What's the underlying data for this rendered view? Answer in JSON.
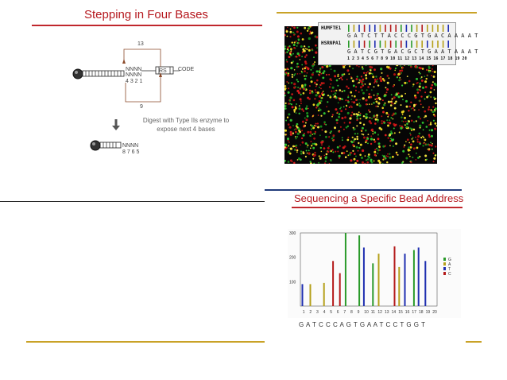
{
  "slides": {
    "left_top": {
      "title": "Stepping in Four Bases",
      "label_13": "13",
      "label_9": "9",
      "nnnn_top": "NNNN",
      "nnnn_bottom": "NNNN",
      "digits_432": "4 3 2 1",
      "rs_label": "RS",
      "code_label": "CODE",
      "digest_text_line1": "Digest with Type IIs enzyme to",
      "digest_text_line2": "expose next 4 bases",
      "nnnn_after": "NNNN",
      "digits_8765": "8 7 6 5"
    },
    "right_top": {
      "seq1_name": "HUMFTE1",
      "seq1_letters": "G A T C T T A C C C G T G A C A A A A T",
      "seq2_name": "HSRNPA1",
      "seq2_letters": "G A T C G T G A C G C T G A A T A A A T",
      "position_numbers": "1 2 3 4 5 6 7 8 9 10 11 12 13 14 15 16 17 18 19 20"
    },
    "right_bottom": {
      "title": "Sequencing a Specific Bead Address",
      "bottom_sequence": "G A T C C C A G T G A A T C C T G G T"
    }
  },
  "colors": {
    "title_red": "#b5171d",
    "gold": "#c9a227",
    "navy": "#1f3a7a",
    "G": "#2a9a2a",
    "A": "#b5a01a",
    "T": "#1f2fb0",
    "C": "#b41a1a"
  },
  "chart_data": {
    "type": "bar",
    "categories": [
      "1",
      "2",
      "3",
      "4",
      "5",
      "6",
      "7",
      "8",
      "9",
      "10",
      "11",
      "12",
      "13",
      "14",
      "15",
      "16",
      "17",
      "18",
      "19",
      "20"
    ],
    "y_ticks": [
      "100",
      "200",
      "300"
    ],
    "ylim": [
      0,
      300
    ],
    "legend": [
      "G",
      "A",
      "T",
      "C"
    ],
    "series": [
      {
        "name": "G",
        "values": [
          0,
          0,
          0,
          0,
          0,
          0,
          300,
          0,
          290,
          0,
          175,
          0,
          0,
          0,
          0,
          0,
          230,
          0,
          0,
          0
        ]
      },
      {
        "name": "A",
        "values": [
          0,
          90,
          0,
          95,
          0,
          0,
          0,
          0,
          0,
          0,
          0,
          215,
          0,
          0,
          160,
          0,
          0,
          0,
          0,
          0
        ]
      },
      {
        "name": "T",
        "values": [
          90,
          0,
          0,
          0,
          0,
          0,
          0,
          0,
          0,
          240,
          0,
          0,
          0,
          0,
          0,
          215,
          0,
          240,
          185,
          0
        ]
      },
      {
        "name": "C",
        "values": [
          0,
          0,
          0,
          0,
          185,
          135,
          0,
          0,
          0,
          0,
          0,
          0,
          0,
          245,
          0,
          0,
          0,
          0,
          0,
          0
        ]
      }
    ]
  }
}
